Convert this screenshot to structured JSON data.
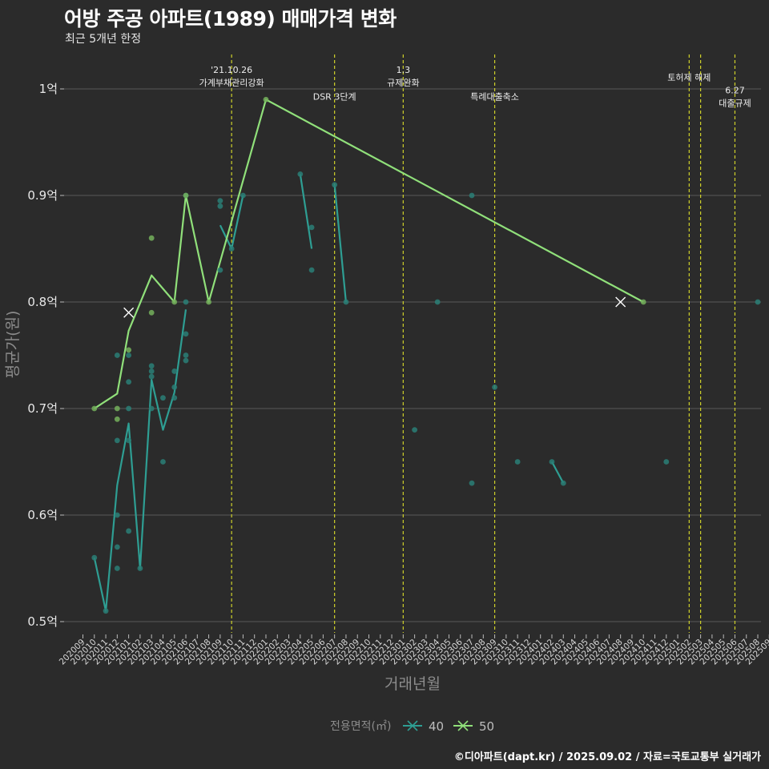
{
  "title": "어방 주공 아파트(1989) 매매가격 변화",
  "subtitle": "최근 5개년 한정",
  "footer": "©디아파트(dapt.kr) / 2025.09.02 / 자료=국토교통부 실거래가",
  "colors": {
    "series40": "#2e9e93",
    "series50": "#90e07a",
    "point40": "#2a7f77",
    "point50": "#74b05c",
    "event_line": "#cfd12a",
    "grid": "#5a5a5a",
    "axis_text": "#e8e8e8",
    "axis_title": "#8c8c8c"
  },
  "chart_data": {
    "type": "line",
    "title": "어방 주공 아파트(1989) 매매가격 변화",
    "xlabel": "거래년월",
    "ylabel": "평균가(원)",
    "ylim": [
      0.48,
      1.03
    ],
    "yticks": [
      0.5,
      0.6,
      0.7,
      0.8,
      0.9,
      1.0
    ],
    "ytick_labels": [
      "0.5억",
      "0.6억",
      "0.7억",
      "0.8억",
      "0.9억",
      "1억"
    ],
    "months": [
      "202009",
      "202010",
      "202011",
      "202012",
      "202101",
      "202102",
      "202103",
      "202104",
      "202105",
      "202106",
      "202107",
      "202108",
      "202109",
      "202110",
      "202111",
      "202112",
      "202201",
      "202202",
      "202203",
      "202204",
      "202205",
      "202206",
      "202207",
      "202208",
      "202209",
      "202210",
      "202211",
      "202212",
      "202301",
      "202302",
      "202303",
      "202304",
      "202305",
      "202306",
      "202307",
      "202308",
      "202309",
      "202310",
      "202311",
      "202312",
      "202401",
      "202402",
      "202403",
      "202404",
      "202405",
      "202406",
      "202407",
      "202408",
      "202409",
      "202410",
      "202411",
      "202412",
      "202501",
      "202502",
      "202503",
      "202504",
      "202505",
      "202506",
      "202507",
      "202508",
      "202509"
    ],
    "legend_title": "전용면적(㎡)",
    "series": [
      {
        "name": "40",
        "line_segments": [
          [
            [
              "202010",
              0.56
            ],
            [
              "202011",
              0.51
            ],
            [
              "202012",
              0.628
            ],
            [
              "202101",
              0.686
            ],
            [
              "202102",
              0.55
            ],
            [
              "202103",
              0.727
            ],
            [
              "202104",
              0.68
            ],
            [
              "202105",
              0.715
            ],
            [
              "202106",
              0.793
            ]
          ],
          [
            [
              "202109",
              0.872
            ],
            [
              "202110",
              0.85
            ],
            [
              "202111",
              0.9
            ]
          ],
          [
            [
              "202204",
              0.92
            ],
            [
              "202205",
              0.85
            ]
          ],
          [
            [
              "202207",
              0.91
            ],
            [
              "202208",
              0.8
            ]
          ],
          [
            [
              "202402",
              0.65
            ],
            [
              "202403",
              0.63
            ]
          ]
        ],
        "points": [
          [
            "202010",
            0.56
          ],
          [
            "202011",
            0.51
          ],
          [
            "202012",
            0.55
          ],
          [
            "202012",
            0.57
          ],
          [
            "202012",
            0.6
          ],
          [
            "202012",
            0.67
          ],
          [
            "202012",
            0.75
          ],
          [
            "202101",
            0.585
          ],
          [
            "202101",
            0.67
          ],
          [
            "202101",
            0.7
          ],
          [
            "202101",
            0.725
          ],
          [
            "202101",
            0.75
          ],
          [
            "202102",
            0.55
          ],
          [
            "202103",
            0.7
          ],
          [
            "202103",
            0.73
          ],
          [
            "202103",
            0.735
          ],
          [
            "202103",
            0.74
          ],
          [
            "202104",
            0.65
          ],
          [
            "202104",
            0.71
          ],
          [
            "202105",
            0.71
          ],
          [
            "202105",
            0.72
          ],
          [
            "202105",
            0.735
          ],
          [
            "202106",
            0.745
          ],
          [
            "202106",
            0.75
          ],
          [
            "202106",
            0.77
          ],
          [
            "202106",
            0.8
          ],
          [
            "202106",
            0.9
          ],
          [
            "202109",
            0.83
          ],
          [
            "202109",
            0.89
          ],
          [
            "202109",
            0.895
          ],
          [
            "202110",
            0.85
          ],
          [
            "202111",
            0.9
          ],
          [
            "202204",
            0.92
          ],
          [
            "202205",
            0.83
          ],
          [
            "202205",
            0.87
          ],
          [
            "202207",
            0.91
          ],
          [
            "202208",
            0.8
          ],
          [
            "202302",
            0.68
          ],
          [
            "202304",
            0.8
          ],
          [
            "202307",
            0.63
          ],
          [
            "202307",
            0.9
          ],
          [
            "202309",
            0.72
          ],
          [
            "202311",
            0.65
          ],
          [
            "202402",
            0.65
          ],
          [
            "202403",
            0.63
          ],
          [
            "202412",
            0.65
          ],
          [
            "202508",
            0.8
          ]
        ],
        "outlier_marks": [
          [
            "202101",
            0.79
          ]
        ]
      },
      {
        "name": "50",
        "line_segments": [
          [
            [
              "202010",
              0.7
            ],
            [
              "202012",
              0.714
            ],
            [
              "202101",
              0.773
            ],
            [
              "202103",
              0.825
            ],
            [
              "202105",
              0.8
            ],
            [
              "202106",
              0.9
            ],
            [
              "202108",
              0.8
            ],
            [
              "202201",
              0.99
            ],
            [
              "202410",
              0.8
            ]
          ]
        ],
        "points": [
          [
            "202010",
            0.7
          ],
          [
            "202012",
            0.69
          ],
          [
            "202012",
            0.7
          ],
          [
            "202101",
            0.755
          ],
          [
            "202103",
            0.79
          ],
          [
            "202103",
            0.86
          ],
          [
            "202105",
            0.8
          ],
          [
            "202106",
            0.9
          ],
          [
            "202108",
            0.8
          ],
          [
            "202201",
            0.99
          ],
          [
            "202410",
            0.8
          ]
        ],
        "outlier_marks": [
          [
            "202408",
            0.8
          ]
        ]
      }
    ],
    "events": [
      {
        "month": "202110",
        "lines": [
          "'21.10.26",
          "가계부채관리강화"
        ],
        "label_y": 1.015
      },
      {
        "month": "202207",
        "lines": [
          "DSR 3단계"
        ],
        "label_y": 0.99
      },
      {
        "month": "202301",
        "lines": [
          "1.3",
          "규제완화"
        ],
        "label_y": 1.015
      },
      {
        "month": "202309",
        "lines": [
          "특례대출축소"
        ],
        "label_y": 0.99
      },
      {
        "month": "202502",
        "lines": [
          "토허제 해제"
        ],
        "label_y": 1.008
      },
      {
        "month": "202503",
        "lines": [],
        "label_y": 1.008
      },
      {
        "month": "202506",
        "lines": [
          "6.27",
          "대출규제"
        ],
        "label_y": 0.996
      }
    ]
  }
}
